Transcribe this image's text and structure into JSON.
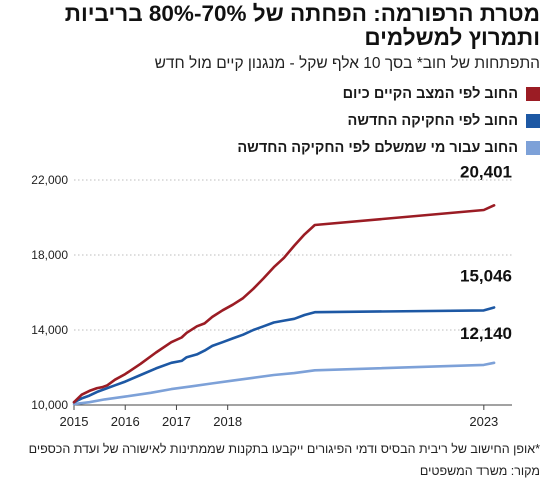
{
  "title": "מטרת הרפורמה: הפחתה של 70%-80% בריביות ותמרוץ למשלמים",
  "subtitle": "התפתחות של חוב* בסך 10 אלף שקל - מנגנון קיים מול חדש",
  "footnote": "*אופן החישוב של ריבית הבסיס ודמי הפיגורים ייקבעו בתקנות שממתינות לאישורה של ועדת הכספים",
  "source": "מקור: משרד המשפטים",
  "chart_data": {
    "type": "line",
    "title": "מטרת הרפורמה: הפחתה של 70%-80% בריביות ותמרוץ למשלמים",
    "subtitle": "התפתחות של חוב* בסך 10 אלף שקל - מנגנון קיים מול חדש",
    "xlabel": "",
    "ylabel": "",
    "xlim": [
      2015.0,
      2023.55
    ],
    "ylim": [
      10000,
      22000
    ],
    "y_ticks": [
      10000,
      14000,
      18000,
      22000
    ],
    "y_tick_labels": [
      "10,000",
      "14,000",
      "18,000",
      "22,000"
    ],
    "x_ticks": [
      2015,
      2016,
      2017,
      2018,
      2023
    ],
    "x_tick_labels": [
      "2015",
      "2016",
      "2017",
      "2018",
      "2023"
    ],
    "grid": true,
    "legend_position": "top-right",
    "series": [
      {
        "name": "החוב לפי המצב הקיים כיום",
        "color": "#9b1c24",
        "end_label": "20,401",
        "x": [
          2015.0,
          2015.15,
          2015.3,
          2015.45,
          2015.55,
          2015.65,
          2015.8,
          2016.0,
          2016.3,
          2016.6,
          2016.9,
          2017.1,
          2017.2,
          2017.4,
          2017.55,
          2017.7,
          2017.9,
          2018.1,
          2018.3,
          2018.5,
          2018.7,
          2018.9,
          2019.1,
          2019.3,
          2019.5,
          2019.7,
          2023.0,
          2023.2
        ],
        "y": [
          10150,
          10550,
          10750,
          10900,
          10950,
          11050,
          11350,
          11650,
          12200,
          12800,
          13350,
          13600,
          13850,
          14200,
          14350,
          14700,
          15050,
          15350,
          15700,
          16200,
          16750,
          17350,
          17850,
          18500,
          19100,
          19600,
          20401,
          20650
        ]
      },
      {
        "name": "החוב לפי החקיקה החדשה",
        "color": "#1d58a4",
        "end_label": "15,046",
        "x": [
          2015.0,
          2015.15,
          2015.3,
          2015.45,
          2015.55,
          2015.65,
          2015.8,
          2016.0,
          2016.3,
          2016.6,
          2016.9,
          2017.1,
          2017.2,
          2017.4,
          2017.55,
          2017.7,
          2017.9,
          2018.1,
          2018.3,
          2018.5,
          2018.7,
          2018.9,
          2019.1,
          2019.3,
          2019.5,
          2019.7,
          2023.0,
          2023.2
        ],
        "y": [
          10150,
          10350,
          10500,
          10700,
          10800,
          10900,
          11050,
          11250,
          11600,
          11950,
          12250,
          12350,
          12550,
          12700,
          12900,
          13150,
          13350,
          13550,
          13750,
          14000,
          14200,
          14400,
          14500,
          14600,
          14800,
          14950,
          15046,
          15200
        ]
      },
      {
        "name": "החוב עבור מי שמשלם לפי החקיקה החדשה",
        "color": "#7da1d8",
        "end_label": "12,140",
        "x": [
          2015.0,
          2015.3,
          2015.6,
          2016.0,
          2016.5,
          2016.9,
          2017.3,
          2017.7,
          2018.1,
          2018.5,
          2018.9,
          2019.3,
          2019.7,
          2023.0,
          2023.2
        ],
        "y": [
          10050,
          10150,
          10300,
          10450,
          10650,
          10850,
          11000,
          11150,
          11300,
          11450,
          11600,
          11700,
          11850,
          12140,
          12250
        ]
      }
    ]
  }
}
